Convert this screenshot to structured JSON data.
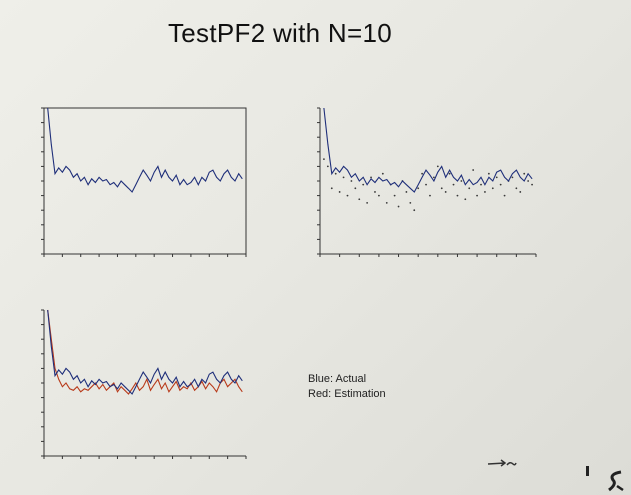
{
  "slide": {
    "title": "TestPF2 with N=10"
  },
  "legend": {
    "line1": "Blue: Actual",
    "line2": "Red: Estimation"
  },
  "colors": {
    "actual": "#1f2f7a",
    "estimation": "#b83a1a",
    "dots": "#3a3a3a",
    "axis": "#333333"
  },
  "chart_data": [
    {
      "type": "line",
      "title": "",
      "x": [
        1,
        2,
        3,
        4,
        5,
        6,
        7,
        8,
        9,
        10,
        11,
        12,
        13,
        14,
        15,
        16,
        17,
        18,
        19,
        20,
        21,
        22,
        23,
        24,
        25,
        26,
        27,
        28,
        29,
        30,
        31,
        32,
        33,
        34,
        35,
        36,
        37,
        38,
        39,
        40,
        41,
        42,
        43,
        44,
        45,
        46,
        47,
        48,
        49,
        50,
        51,
        52,
        53,
        54
      ],
      "series": [
        {
          "values": [
            1.0,
            0.5,
            0.1,
            0.18,
            0.12,
            0.2,
            0.15,
            0.05,
            0.1,
            0.0,
            0.05,
            -0.05,
            0.03,
            -0.02,
            0.05,
            0.0,
            0.02,
            -0.05,
            -0.02,
            -0.08,
            0.0,
            -0.05,
            -0.1,
            -0.15,
            -0.05,
            0.05,
            0.15,
            0.08,
            0.0,
            0.12,
            0.2,
            0.05,
            0.15,
            0.05,
            0.0,
            0.08,
            -0.05,
            0.02,
            -0.05,
            -0.02,
            0.05,
            -0.05,
            0.05,
            0.0,
            0.12,
            0.15,
            0.05,
            0.0,
            0.1,
            0.15,
            0.05,
            0.0,
            0.1,
            0.03
          ]
        }
      ],
      "ylim": [
        -1.0,
        1.0
      ],
      "xlim": [
        0,
        55
      ]
    },
    {
      "type": "line",
      "title": "",
      "x": [
        1,
        2,
        3,
        4,
        5,
        6,
        7,
        8,
        9,
        10,
        11,
        12,
        13,
        14,
        15,
        16,
        17,
        18,
        19,
        20,
        21,
        22,
        23,
        24,
        25,
        26,
        27,
        28,
        29,
        30,
        31,
        32,
        33,
        34,
        35,
        36,
        37,
        38,
        39,
        40,
        41,
        42,
        43,
        44,
        45,
        46,
        47,
        48,
        49,
        50,
        51,
        52,
        53,
        54
      ],
      "series": [
        {
          "values": [
            1.0,
            0.5,
            0.1,
            0.18,
            0.12,
            0.2,
            0.15,
            0.05,
            0.1,
            0.0,
            0.05,
            -0.05,
            0.03,
            -0.02,
            0.05,
            0.0,
            0.02,
            -0.05,
            -0.02,
            -0.08,
            0.0,
            -0.05,
            -0.1,
            -0.15,
            -0.05,
            0.05,
            0.15,
            0.08,
            0.0,
            0.12,
            0.2,
            0.05,
            0.15,
            0.05,
            0.0,
            0.08,
            -0.05,
            0.02,
            -0.05,
            -0.02,
            0.05,
            -0.05,
            0.05,
            0.0,
            0.12,
            0.15,
            0.05,
            0.0,
            0.1,
            0.15,
            0.05,
            0.0,
            0.1,
            0.03
          ]
        }
      ],
      "dots": [
        0.3,
        0.2,
        -0.1,
        0.1,
        -0.15,
        0.05,
        -0.2,
        0.0,
        -0.1,
        -0.25,
        -0.05,
        -0.3,
        0.05,
        -0.15,
        -0.2,
        0.1,
        -0.3,
        -0.05,
        -0.2,
        -0.35,
        0.0,
        -0.15,
        -0.3,
        -0.4,
        -0.1,
        0.1,
        -0.05,
        -0.2,
        0.05,
        0.2,
        -0.1,
        -0.15,
        0.1,
        -0.05,
        -0.2,
        0.0,
        -0.25,
        -0.1,
        0.15,
        -0.2,
        -0.05,
        -0.15,
        0.1,
        -0.1,
        0.05,
        -0.05,
        -0.2,
        0.0,
        0.05,
        -0.1,
        -0.15,
        0.1,
        0.0,
        -0.05
      ],
      "ylim": [
        -1.0,
        1.0
      ],
      "xlim": [
        0,
        55
      ]
    },
    {
      "type": "line",
      "title": "",
      "x": [
        1,
        2,
        3,
        4,
        5,
        6,
        7,
        8,
        9,
        10,
        11,
        12,
        13,
        14,
        15,
        16,
        17,
        18,
        19,
        20,
        21,
        22,
        23,
        24,
        25,
        26,
        27,
        28,
        29,
        30,
        31,
        32,
        33,
        34,
        35,
        36,
        37,
        38,
        39,
        40,
        41,
        42,
        43,
        44,
        45,
        46,
        47,
        48,
        49,
        50,
        51,
        52,
        53,
        54
      ],
      "series": [
        {
          "values": [
            1.0,
            0.5,
            0.1,
            0.18,
            0.12,
            0.2,
            0.15,
            0.05,
            0.1,
            0.0,
            0.05,
            -0.05,
            0.03,
            -0.02,
            0.05,
            0.0,
            0.02,
            -0.05,
            -0.02,
            -0.08,
            0.0,
            -0.05,
            -0.1,
            -0.15,
            -0.05,
            0.05,
            0.15,
            0.08,
            0.0,
            0.12,
            0.2,
            0.05,
            0.15,
            0.05,
            0.0,
            0.08,
            -0.05,
            0.02,
            -0.05,
            -0.02,
            0.05,
            -0.05,
            0.05,
            0.0,
            0.12,
            0.15,
            0.05,
            0.0,
            0.1,
            0.15,
            0.05,
            0.0,
            0.1,
            0.03
          ]
        },
        {
          "values": [
            1.0,
            0.6,
            0.2,
            0.05,
            -0.05,
            0.0,
            -0.08,
            -0.1,
            -0.05,
            -0.12,
            -0.08,
            -0.1,
            -0.05,
            0.0,
            -0.08,
            -0.02,
            -0.1,
            -0.05,
            0.0,
            -0.12,
            -0.05,
            -0.1,
            -0.15,
            -0.08,
            0.0,
            -0.1,
            -0.05,
            0.05,
            -0.1,
            -0.02,
            0.05,
            -0.08,
            0.0,
            -0.12,
            -0.05,
            0.02,
            -0.1,
            -0.05,
            -0.08,
            0.0,
            -0.1,
            -0.05,
            0.02,
            -0.08,
            0.0,
            -0.05,
            -0.12,
            0.0,
            0.05,
            -0.05,
            0.0,
            0.05,
            -0.05,
            -0.12
          ]
        }
      ],
      "ylim": [
        -1.0,
        1.0
      ],
      "xlim": [
        0,
        55
      ]
    }
  ]
}
